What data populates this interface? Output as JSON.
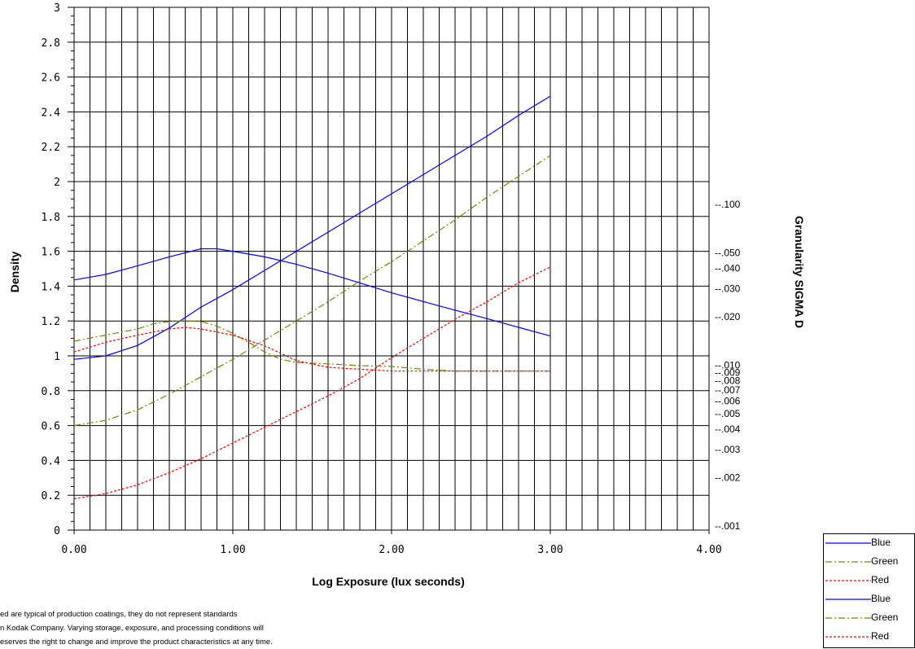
{
  "chart_data": {
    "type": "line",
    "title": "",
    "xlabel": "Log Exposure (lux seconds)",
    "ylabel": "Density",
    "y2label": "Granularity SIGMA D",
    "xlim": [
      0,
      4
    ],
    "ylim": [
      0,
      3
    ],
    "x_ticks": [
      "0.00",
      "1.00",
      "2.00",
      "3.00",
      "4.00"
    ],
    "y_ticks": [
      "0",
      "0.2",
      "0.4",
      "0.6",
      "0.8",
      "1",
      "1.2",
      "1.4",
      "1.6",
      "1.8",
      "2",
      "2.2",
      "2.4",
      "2.6",
      "2.8",
      "3"
    ],
    "y2_scale": "log",
    "y2_ticks": [
      {
        "label": "-.100",
        "value": 0.1
      },
      {
        "label": "-.050",
        "value": 0.05
      },
      {
        "label": "-.040",
        "value": 0.04
      },
      {
        "label": "-.030",
        "value": 0.03
      },
      {
        "label": "-.020",
        "value": 0.02
      },
      {
        "label": "-.010",
        "value": 0.01
      },
      {
        "label": "-.009",
        "value": 0.009
      },
      {
        "label": "-.008",
        "value": 0.008
      },
      {
        "label": "-.007",
        "value": 0.007
      },
      {
        "label": "-.006",
        "value": 0.006
      },
      {
        "label": "-.005",
        "value": 0.005
      },
      {
        "label": "-.004",
        "value": 0.004
      },
      {
        "label": "-.003",
        "value": 0.003
      },
      {
        "label": "-.002",
        "value": 0.002
      },
      {
        "label": "-.001",
        "value": 0.001
      }
    ],
    "grid": true,
    "legend_position": "bottom-right",
    "series": [
      {
        "name": "Blue",
        "color": "#0000ff",
        "style": "solid",
        "axis": "density",
        "x": [
          0.0,
          0.2,
          0.4,
          0.6,
          0.8,
          1.0,
          1.2,
          1.4,
          1.6,
          1.8,
          2.0,
          2.2,
          2.4,
          2.6,
          2.8,
          3.0
        ],
        "y": [
          0.98,
          1.0,
          1.06,
          1.16,
          1.28,
          1.38,
          1.49,
          1.6,
          1.71,
          1.82,
          1.93,
          2.04,
          2.15,
          2.26,
          2.38,
          2.49
        ]
      },
      {
        "name": "Green",
        "color": "#808000",
        "style": "dashdot",
        "axis": "density",
        "x": [
          0.0,
          0.2,
          0.4,
          0.6,
          0.8,
          1.0,
          1.2,
          1.4,
          1.6,
          1.8,
          2.0,
          2.2,
          2.4,
          2.6,
          2.8,
          3.0
        ],
        "y": [
          0.6,
          0.63,
          0.69,
          0.78,
          0.88,
          0.98,
          1.09,
          1.2,
          1.31,
          1.43,
          1.54,
          1.66,
          1.78,
          1.91,
          2.03,
          2.15
        ]
      },
      {
        "name": "Red",
        "color": "#ff0000",
        "style": "dotted",
        "axis": "density",
        "x": [
          0.0,
          0.2,
          0.4,
          0.6,
          0.8,
          1.0,
          1.2,
          1.4,
          1.6,
          1.8,
          2.0,
          2.2,
          2.4,
          2.6,
          2.8,
          3.0
        ],
        "y": [
          0.18,
          0.21,
          0.26,
          0.33,
          0.41,
          0.5,
          0.59,
          0.68,
          0.77,
          0.87,
          0.99,
          1.1,
          1.21,
          1.31,
          1.42,
          1.51
        ]
      },
      {
        "name": "Blue",
        "color": "#0000ff",
        "style": "solid",
        "axis": "granularity",
        "x": [
          0.0,
          0.2,
          0.4,
          0.6,
          0.8,
          0.9,
          1.0,
          1.2,
          1.4,
          1.6,
          1.8,
          2.0,
          2.2,
          2.4,
          2.6,
          2.8,
          3.0
        ],
        "y": [
          0.0339,
          0.0367,
          0.0415,
          0.0472,
          0.053,
          0.053,
          0.0511,
          0.0472,
          0.0424,
          0.0374,
          0.0325,
          0.0282,
          0.0249,
          0.022,
          0.0195,
          0.0172,
          0.0152
        ]
      },
      {
        "name": "Green",
        "color": "#808000",
        "style": "dashdot",
        "axis": "granularity",
        "x": [
          0.0,
          0.2,
          0.4,
          0.5,
          0.6,
          0.7,
          0.8,
          0.9,
          1.0,
          1.1,
          1.2,
          1.3,
          1.4,
          1.6,
          1.8,
          2.0,
          2.2,
          2.4,
          2.6,
          2.8,
          3.0
        ],
        "y": [
          0.0141,
          0.0154,
          0.0168,
          0.0181,
          0.0187,
          0.0189,
          0.0187,
          0.0175,
          0.0158,
          0.0139,
          0.0121,
          0.0109,
          0.0104,
          0.0102,
          0.00994,
          0.00983,
          0.00944,
          0.0092,
          0.0092,
          0.0092,
          0.0092
        ]
      },
      {
        "name": "Red",
        "color": "#ff0000",
        "style": "dotted",
        "axis": "granularity",
        "x": [
          0.0,
          0.2,
          0.4,
          0.6,
          0.7,
          0.8,
          1.0,
          1.2,
          1.4,
          1.6,
          1.8,
          2.0,
          2.2,
          2.4,
          2.6,
          2.8,
          3.0
        ],
        "y": [
          0.0121,
          0.0139,
          0.0154,
          0.0168,
          0.0172,
          0.0168,
          0.0154,
          0.0132,
          0.0107,
          0.0097,
          0.00944,
          0.0092,
          0.0092,
          0.0092,
          0.0092,
          0.0092,
          0.0092
        ]
      }
    ]
  },
  "legend": {
    "items": [
      {
        "label": "Blue",
        "color": "#0000ff",
        "style": "solid"
      },
      {
        "label": "Green",
        "color": "#808000",
        "style": "dashdot"
      },
      {
        "label": "Red",
        "color": "#ff0000",
        "style": "dotted"
      },
      {
        "label": "Blue",
        "color": "#0000ff",
        "style": "solid"
      },
      {
        "label": "Green",
        "color": "#808000",
        "style": "dashdot"
      },
      {
        "label": "Red",
        "color": "#ff0000",
        "style": "dotted"
      }
    ]
  },
  "disclaimer": {
    "lines": [
      "ed are typical of production coatings, they do not represent standards",
      "n Kodak Company.  Varying storage, exposure, and processing conditions will",
      "eserves the right to change and improve the product characteristics at any time."
    ]
  }
}
